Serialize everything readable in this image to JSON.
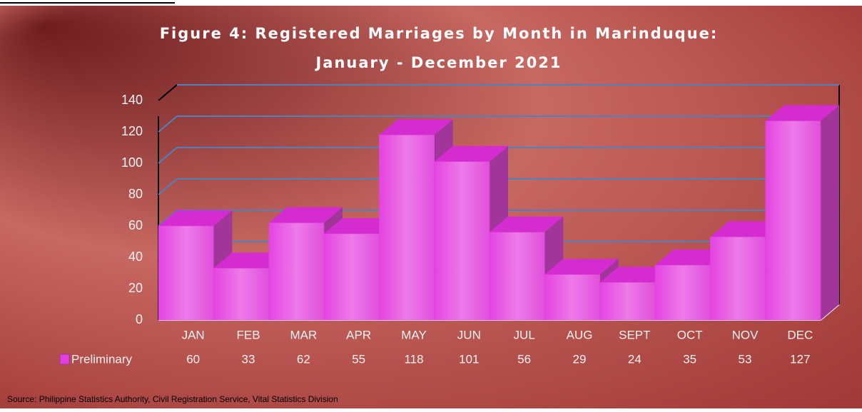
{
  "chart_data": {
    "type": "bar3d",
    "title": [
      "Figure 4: Registered Marriages by Month in Marinduque:",
      "January - December 2021"
    ],
    "categories": [
      "JAN",
      "FEB",
      "MAR",
      "APR",
      "MAY",
      "JUN",
      "JUL",
      "AUG",
      "SEPT",
      "OCT",
      "NOV",
      "DEC"
    ],
    "series": [
      {
        "name": "Preliminary",
        "color": "#e23fe0",
        "values": [
          60,
          33,
          62,
          55,
          118,
          101,
          56,
          29,
          24,
          35,
          53,
          127
        ]
      }
    ],
    "ylim": [
      0,
      140
    ],
    "yticks": [
      0,
      20,
      40,
      60,
      80,
      100,
      120,
      140
    ],
    "grid": true,
    "source": "Source: Philippine Statistics Authority, Civil Registration Service, Vital Statistics Division"
  }
}
